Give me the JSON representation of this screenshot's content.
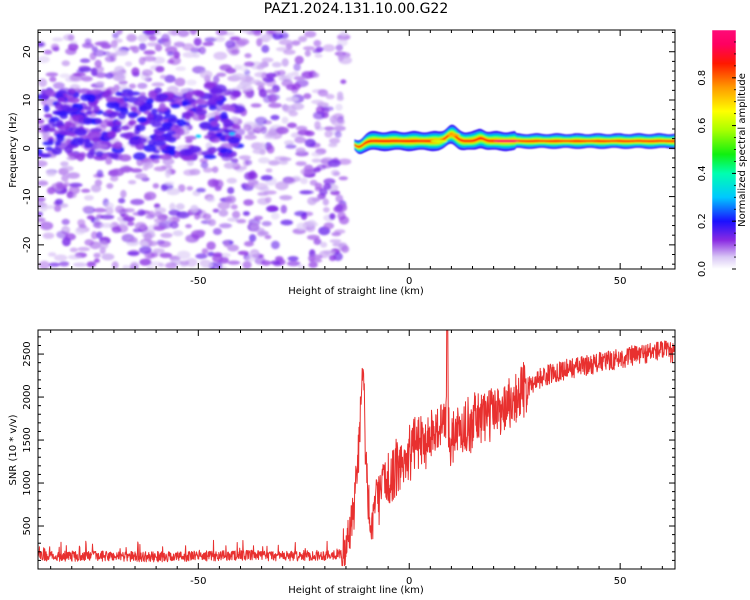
{
  "title": "PAZ1.2024.131.10.00.G22",
  "chart_data": [
    {
      "type": "heatmap",
      "title": "",
      "xlabel": "Height of straight line (km)",
      "ylabel": "Frequency (Hz)",
      "xlim": [
        -88,
        63
      ],
      "ylim": [
        -25,
        24.5
      ],
      "xticks": [
        -50,
        0,
        50
      ],
      "yticks": [
        -20,
        -10,
        0,
        10,
        20
      ],
      "colorbar": {
        "label": "Normalized spectral amplitude",
        "range": [
          0,
          1
        ],
        "ticks": [
          0.0,
          0.2,
          0.4,
          0.6,
          0.8
        ],
        "colormap": "white-lavender-violet-blue-cyan-green-yellow-orange-red-magenta"
      },
      "features": [
        {
          "kind": "scattered low-amplitude noise",
          "x_range": [
            -88,
            -15
          ],
          "y_range": [
            -25,
            24.5
          ],
          "amplitude": [
            0.0,
            0.15
          ]
        },
        {
          "kind": "stronger noise band",
          "x_range": [
            -88,
            -40
          ],
          "y_range": [
            -2,
            12
          ],
          "amplitude": [
            0.1,
            0.2
          ]
        },
        {
          "kind": "coherent signal band",
          "x_range": [
            -13,
            63
          ],
          "center_hz": 1.5,
          "bandwidth_hz": 3,
          "amplitude": [
            0.5,
            1.0
          ]
        }
      ]
    },
    {
      "type": "line",
      "title": "",
      "xlabel": "Height of straight line (km)",
      "ylabel": "SNR (10 * v/v)",
      "xlim": [
        -88,
        63
      ],
      "ylim": [
        0,
        2780
      ],
      "xticks": [
        -50,
        0,
        50
      ],
      "yticks": [
        500,
        1000,
        1500,
        2000,
        2500
      ],
      "color": "#e8302f",
      "series": [
        {
          "x": [
            -88,
            -80,
            -70,
            -60,
            -50,
            -40,
            -30,
            -20,
            -16,
            -14,
            -13,
            -12,
            -11,
            -10,
            -9,
            -8,
            -7,
            -6,
            -4,
            -2,
            0,
            2,
            4,
            6,
            8,
            9,
            10,
            12,
            15,
            18,
            20,
            22,
            25,
            28,
            30,
            35,
            40,
            45,
            50,
            55,
            60,
            63
          ],
          "y": [
            150,
            150,
            150,
            140,
            150,
            160,
            150,
            160,
            180,
            350,
            700,
            1400,
            2300,
            1000,
            500,
            700,
            900,
            1000,
            1100,
            1200,
            1350,
            1500,
            1500,
            1600,
            1700,
            1750,
            1500,
            1600,
            1700,
            1800,
            1850,
            1900,
            2000,
            2100,
            2200,
            2300,
            2350,
            2400,
            2450,
            2500,
            2550,
            2500
          ]
        }
      ]
    }
  ]
}
